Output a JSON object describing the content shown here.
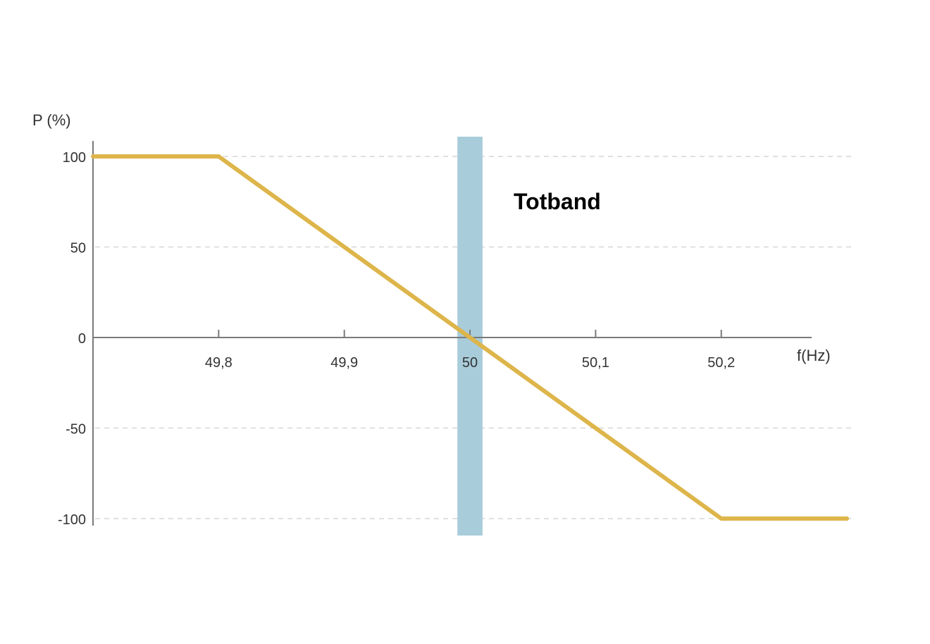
{
  "chart_data": {
    "type": "line",
    "xlabel": "f(Hz)",
    "ylabel": "P (%)",
    "x_ticks": [
      "49,8",
      "49,9",
      "50",
      "50,1",
      "50,2"
    ],
    "x_tick_values": [
      49.8,
      49.9,
      50.0,
      50.1,
      50.2
    ],
    "y_ticks": [
      "100",
      "50",
      "0",
      "-50",
      "-100"
    ],
    "y_tick_values": [
      100,
      50,
      0,
      -50,
      -100
    ],
    "xlim": [
      49.7,
      50.305
    ],
    "ylim": [
      -100,
      100
    ],
    "grid": {
      "horizontal": true,
      "style": "dashed"
    },
    "series": [
      {
        "x": [
          49.7,
          49.8,
          50.2,
          50.3
        ],
        "y": [
          100,
          100,
          -100,
          -100
        ],
        "color": "#DDB54A"
      }
    ],
    "band": {
      "x_start": 49.99,
      "x_end": 50.01,
      "color": "#A8CCDA"
    },
    "annotations": [
      {
        "text": "Totband"
      }
    ],
    "colors": {
      "axis": "#7a7a7a",
      "grid": "#d6d6d6",
      "line": "#DDB54A",
      "band": "#A8CCDA"
    }
  }
}
